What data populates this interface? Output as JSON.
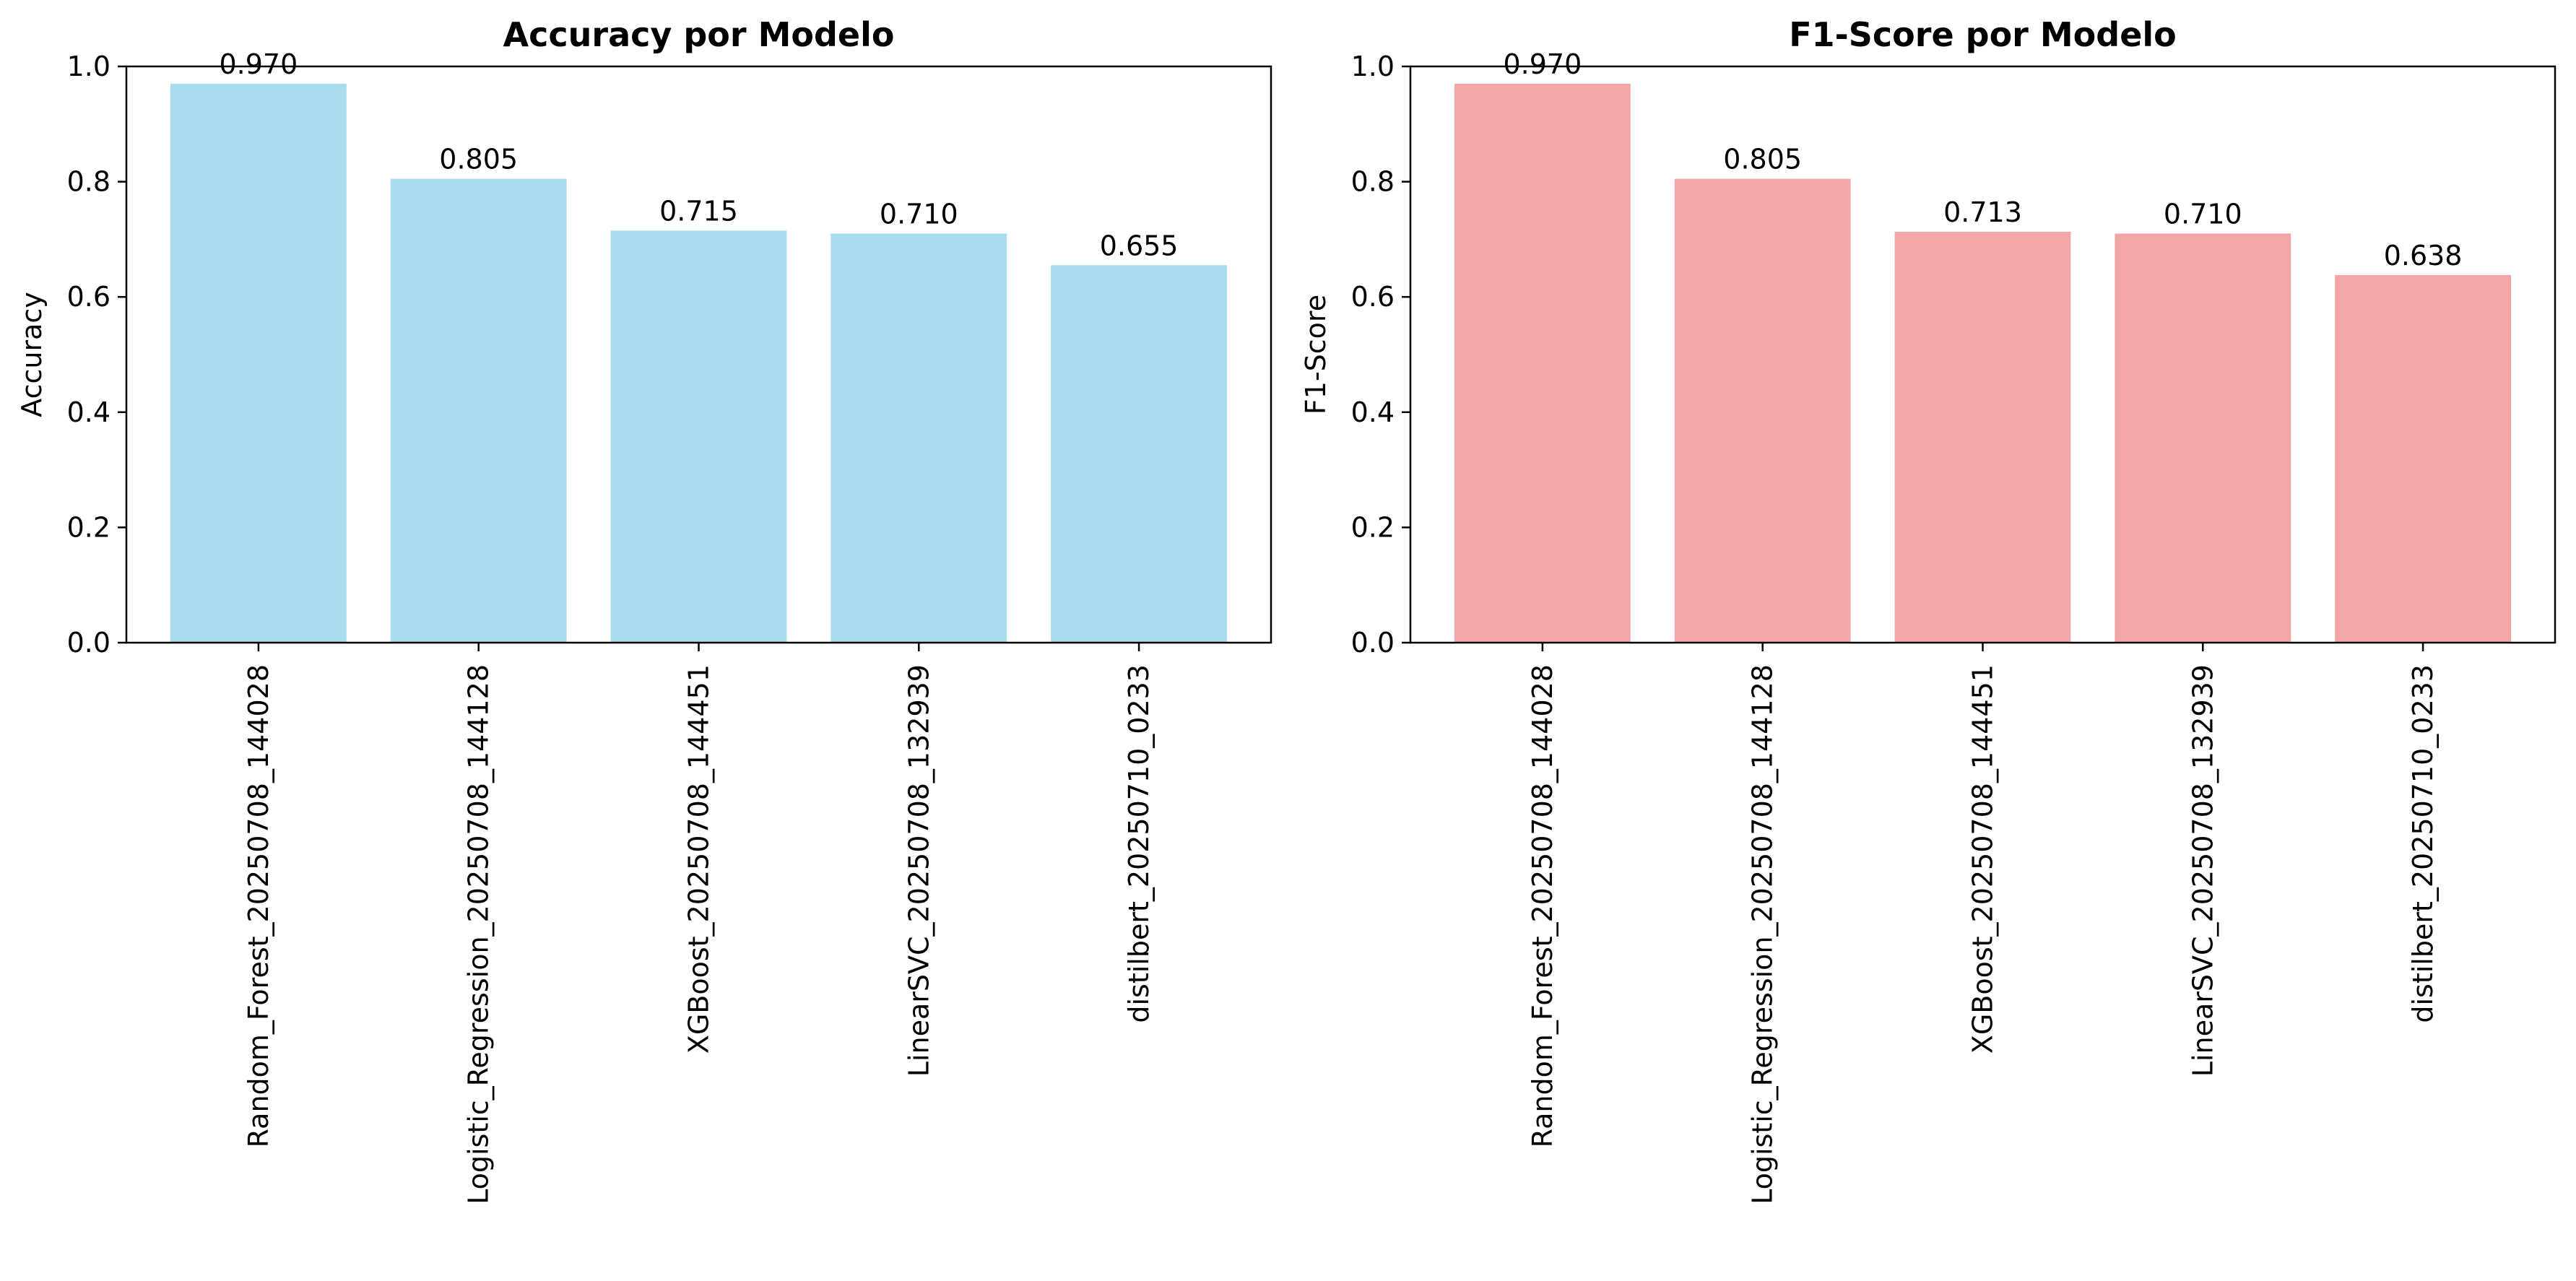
{
  "chart_data": [
    {
      "type": "bar",
      "title": "Accuracy por Modelo",
      "xlabel": "",
      "ylabel": "Accuracy",
      "ylim": [
        0,
        1.0
      ],
      "yticks": [
        "0.0",
        "0.2",
        "0.4",
        "0.6",
        "0.8",
        "1.0"
      ],
      "categories": [
        "Random_Forest_20250708_144028",
        "Logistic_Regression_20250708_144128",
        "XGBoost_20250708_144451",
        "LinearSVC_20250708_132939",
        "distilbert_20250710_0233"
      ],
      "values": [
        0.97,
        0.805,
        0.715,
        0.71,
        0.655
      ],
      "value_labels": [
        "0.970",
        "0.805",
        "0.715",
        "0.710",
        "0.655"
      ],
      "color": "#aadcee",
      "grid": false
    },
    {
      "type": "bar",
      "title": "F1-Score por Modelo",
      "xlabel": "",
      "ylabel": "F1-Score",
      "ylim": [
        0,
        1.0
      ],
      "yticks": [
        "0.0",
        "0.2",
        "0.4",
        "0.6",
        "0.8",
        "1.0"
      ],
      "categories": [
        "Random_Forest_20250708_144028",
        "Logistic_Regression_20250708_144128",
        "XGBoost_20250708_144451",
        "LinearSVC_20250708_132939",
        "distilbert_20250710_0233"
      ],
      "values": [
        0.97,
        0.805,
        0.713,
        0.71,
        0.638
      ],
      "value_labels": [
        "0.970",
        "0.805",
        "0.713",
        "0.710",
        "0.638"
      ],
      "color": "#f4a6a6",
      "grid": false
    }
  ]
}
